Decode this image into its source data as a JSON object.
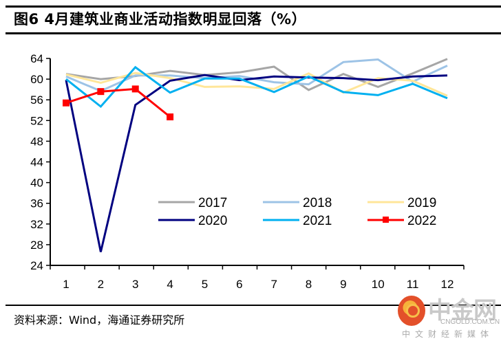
{
  "header": {
    "title": "图6  4月建筑业商业活动指数明显回落（%）"
  },
  "footer": {
    "source": "资料来源：Wind，海通证券研究所"
  },
  "watermark": {
    "brand": "中金网",
    "domain": "CNGOLD.COM.CN",
    "tagline": "中文财经新媒体"
  },
  "chart_data": {
    "type": "line",
    "title": "4月建筑业商业活动指数明显回落（%）",
    "xlabel": "",
    "ylabel": "",
    "x": [
      1,
      2,
      3,
      4,
      5,
      6,
      7,
      8,
      9,
      10,
      11,
      12
    ],
    "x_tick_labels": [
      "1",
      "2",
      "3",
      "4",
      "5",
      "6",
      "7",
      "8",
      "9",
      "10",
      "11",
      "12"
    ],
    "ylim": [
      24,
      64
    ],
    "y_ticks": [
      24,
      28,
      32,
      36,
      40,
      44,
      48,
      52,
      56,
      60,
      64
    ],
    "grid": false,
    "legend_position": "center-right",
    "series": [
      {
        "name": "2017",
        "color": "#a6a6a6",
        "marker": "none",
        "values": [
          61.0,
          60.0,
          60.6,
          61.6,
          60.8,
          61.3,
          62.4,
          57.9,
          61.0,
          58.5,
          61.1,
          63.9
        ]
      },
      {
        "name": "2018",
        "color": "#9dc3e6",
        "marker": "none",
        "values": [
          60.5,
          57.7,
          60.7,
          60.7,
          60.2,
          60.6,
          59.4,
          59.0,
          63.3,
          63.8,
          59.5,
          62.6
        ]
      },
      {
        "name": "2019",
        "color": "#ffe699",
        "marker": "none",
        "values": [
          60.9,
          59.3,
          61.2,
          60.2,
          58.5,
          58.6,
          58.1,
          61.1,
          57.4,
          60.2,
          59.7,
          56.8
        ]
      },
      {
        "name": "2020",
        "color": "#000080",
        "marker": "none",
        "values": [
          59.8,
          26.6,
          55.0,
          59.7,
          60.8,
          59.8,
          60.5,
          60.3,
          60.2,
          59.8,
          60.5,
          60.7
        ]
      },
      {
        "name": "2021",
        "color": "#00b0f0",
        "marker": "none",
        "values": [
          60.0,
          54.7,
          62.3,
          57.4,
          60.1,
          60.1,
          57.5,
          60.5,
          57.5,
          56.9,
          59.1,
          56.3
        ]
      },
      {
        "name": "2022",
        "color": "#ff0000",
        "marker": "square",
        "values": [
          55.4,
          57.6,
          58.1,
          52.7,
          null,
          null,
          null,
          null,
          null,
          null,
          null,
          null
        ]
      }
    ]
  }
}
